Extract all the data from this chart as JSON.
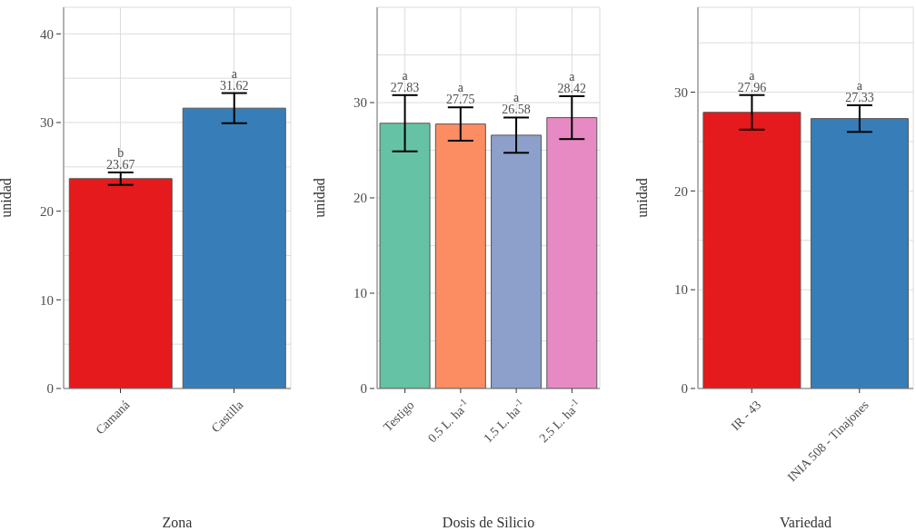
{
  "chart_data": [
    {
      "type": "bar",
      "xlabel": "Zona",
      "ylabel": "unidad",
      "categories": [
        "Camaná",
        "Castilla"
      ],
      "values": [
        23.67,
        31.62
      ],
      "colors": [
        "#e41a1c",
        "#377eb8"
      ],
      "errors": [
        0.7,
        1.7
      ],
      "data_labels": true,
      "ylim": [
        0,
        43
      ],
      "yticks": [
        0,
        {
          "value": 5,
          "label": null
        },
        10,
        {
          "value": 15,
          "label": null
        },
        20,
        {
          "value": 25,
          "label": null
        },
        30,
        {
          "value": 35,
          "label": null
        },
        40
      ],
      "grid": true,
      "annotations": [
        "b",
        "a"
      ]
    },
    {
      "type": "bar",
      "xlabel": "Dosis de Silicio",
      "ylabel": "unidad",
      "categories": [
        "Testigo",
        "0.5 L. ha$^{-1}$",
        "1.5 L. ha$^{-1}$",
        "2.5 L. ha$^{-1}$"
      ],
      "values": [
        27.83,
        27.75,
        26.58,
        28.42
      ],
      "colors": [
        "#66c2a5",
        "#fc8d62",
        "#8da0cb",
        "#e78ac3"
      ],
      "errors": [
        2.95,
        1.75,
        1.85,
        2.25
      ],
      "data_labels": true,
      "ylim": [
        0,
        40
      ],
      "yticks": [
        0,
        {
          "value": 5,
          "label": null
        },
        10,
        {
          "value": 15,
          "label": null
        },
        20,
        {
          "value": 25,
          "label": null
        },
        30,
        {
          "value": 35,
          "label": null
        }
      ],
      "grid": true,
      "annotations": [
        "a",
        "a",
        "a",
        "a"
      ]
    },
    {
      "type": "bar",
      "xlabel": "Variedad",
      "ylabel": "unidad",
      "categories": [
        "IR - 43",
        "INIA 508 - Tinajones"
      ],
      "values": [
        27.96,
        27.33
      ],
      "colors": [
        "#e41a1c",
        "#377eb8"
      ],
      "errors": [
        1.75,
        1.35
      ],
      "data_labels": true,
      "ylim": [
        0,
        38.6
      ],
      "yticks": [
        0,
        {
          "value": 5,
          "label": null
        },
        10,
        {
          "value": 15,
          "label": null
        },
        20,
        {
          "value": 25,
          "label": null
        },
        30,
        {
          "value": 35,
          "label": null
        }
      ],
      "grid": true,
      "annotations": [
        "a",
        "a"
      ]
    }
  ]
}
